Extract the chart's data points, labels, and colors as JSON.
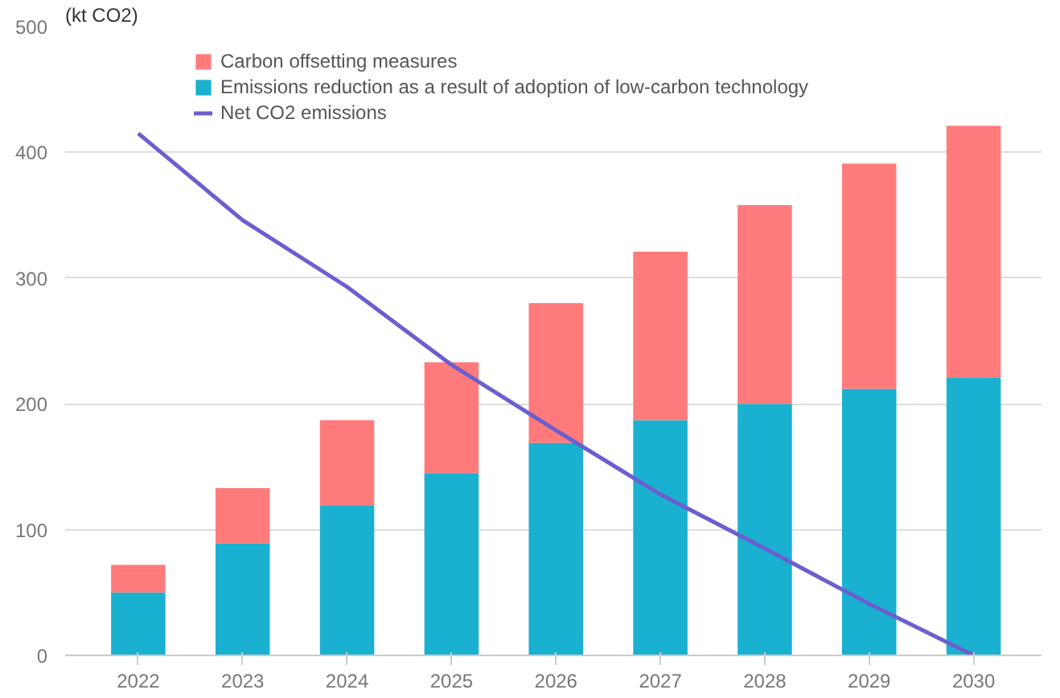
{
  "chart_data": {
    "type": "bar",
    "stacked": true,
    "categories": [
      "2022",
      "2023",
      "2024",
      "2025",
      "2026",
      "2027",
      "2028",
      "2029",
      "2030"
    ],
    "series": [
      {
        "name": "Emissions reduction as a result of adoption of low-carbon technology",
        "color": "#1ab0d0",
        "values": [
          50,
          89,
          119,
          145,
          169,
          187,
          200,
          212,
          221
        ]
      },
      {
        "name": "Carbon offsetting measures",
        "color": "#ff7b7b",
        "values": [
          22,
          44,
          68,
          88,
          111,
          134,
          158,
          179,
          200
        ]
      },
      {
        "name": "Net CO2 emissions",
        "type": "line",
        "color": "#6b5fcf",
        "values": [
          415,
          346,
          293,
          231,
          179,
          128,
          85,
          41,
          0
        ]
      }
    ],
    "ylim": [
      0,
      500
    ],
    "yticks": [
      0,
      100,
      200,
      300,
      400,
      500
    ],
    "grid": "y",
    "legend": "top",
    "marker": "none",
    "annotations": [
      "(kt CO2)"
    ]
  }
}
